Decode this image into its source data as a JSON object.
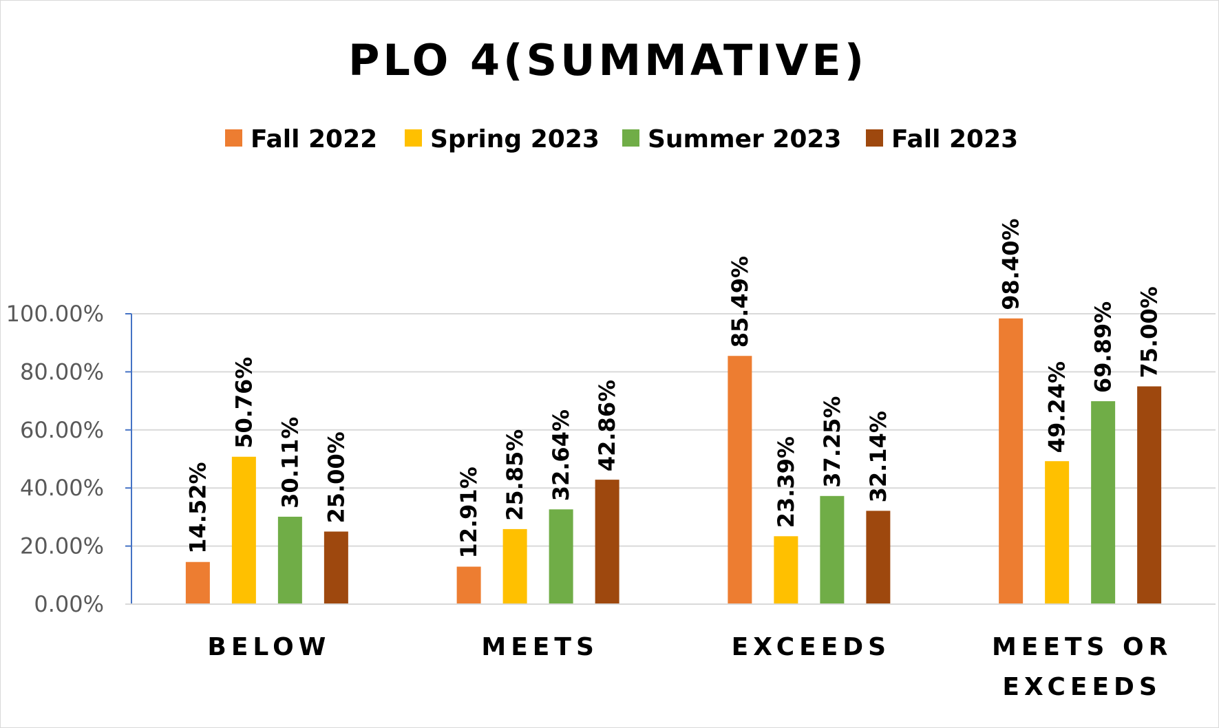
{
  "chart_data": {
    "type": "bar",
    "title": "PLO 4(SUMMATIVE)",
    "categories": [
      [
        "BELOW"
      ],
      [
        "MEETS"
      ],
      [
        "EXCEEDS"
      ],
      [
        "MEETS OR",
        "EXCEEDS"
      ]
    ],
    "series": [
      {
        "name": "Fall 2022",
        "color": "#ED7D31",
        "values": [
          14.52,
          12.91,
          85.49,
          98.4
        ]
      },
      {
        "name": "Spring 2023",
        "color": "#FFC000",
        "values": [
          50.76,
          25.85,
          23.39,
          49.24
        ]
      },
      {
        "name": "Summer 2023",
        "color": "#70AD47",
        "values": [
          30.11,
          32.64,
          37.25,
          69.89
        ]
      },
      {
        "name": "Fall 2023",
        "color": "#9E480E",
        "values": [
          25.0,
          42.86,
          32.14,
          75.0
        ]
      }
    ],
    "y_ticks": [
      "0.00%",
      "20.00%",
      "40.00%",
      "60.00%",
      "80.00%",
      "100.00%"
    ],
    "ylim": [
      0,
      100
    ],
    "value_format": "percent, 2 decimals",
    "grid": true,
    "legend": "top-center",
    "data_labels": "rotated vertical above bars"
  }
}
